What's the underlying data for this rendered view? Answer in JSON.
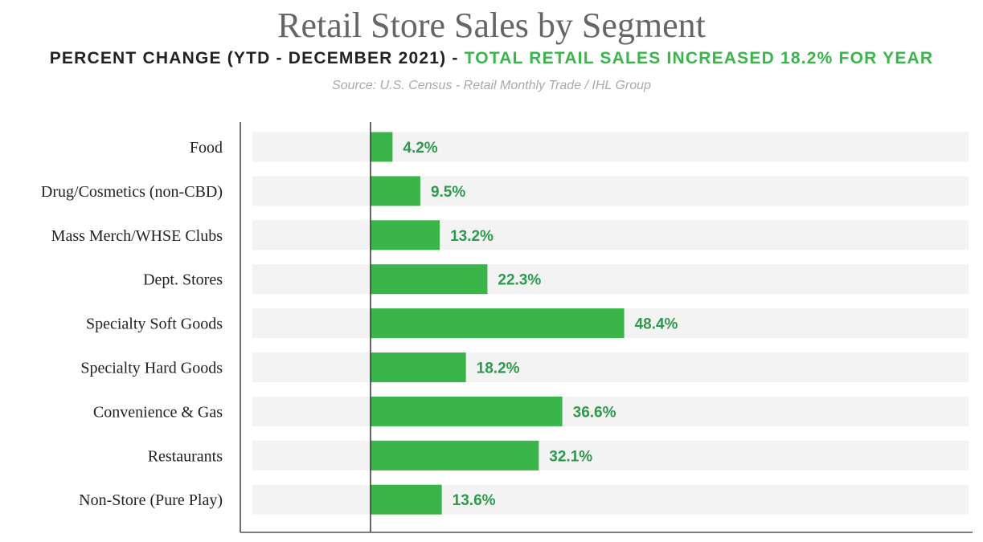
{
  "chart_data": {
    "type": "bar",
    "orientation": "horizontal",
    "title": "Retail Store Sales by Segment",
    "subtitle": "PERCENT CHANGE (YTD - DECEMBER 2021) -",
    "subtitle_highlight": "TOTAL RETAIL SALES INCREASED 18.2% FOR YEAR",
    "source": "Source: U.S. Census - Retail Monthly Trade / IHL Group",
    "categories": [
      "Food",
      "Drug/Cosmetics (non-CBD)",
      "Mass Merch/WHSE Clubs",
      "Dept. Stores",
      "Specialty Soft Goods",
      "Specialty Hard Goods",
      "Convenience & Gas",
      "Restaurants",
      "Non-Store (Pure Play)"
    ],
    "values": [
      4.2,
      9.5,
      13.2,
      22.3,
      48.4,
      18.2,
      36.6,
      32.1,
      13.6
    ],
    "data_labels": [
      "4.2%",
      "9.5%",
      "13.2%",
      "22.3%",
      "48.4%",
      "18.2%",
      "36.6%",
      "32.1%",
      "13.6%"
    ],
    "unit": "%",
    "xlim": [
      0,
      115
    ],
    "grid": false,
    "colors": {
      "bar": "#3ab54a",
      "label": "#2e9a4e",
      "band": "#f3f3f3",
      "highlight": "#3ab54a"
    }
  }
}
